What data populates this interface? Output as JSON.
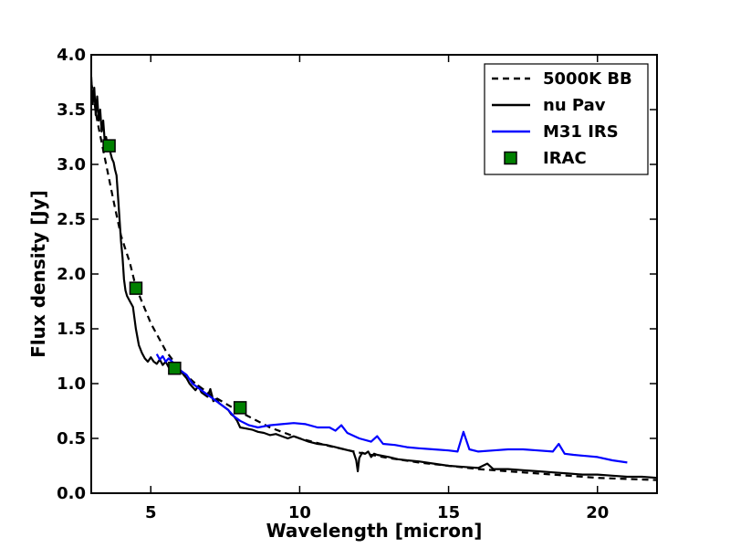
{
  "chart_data": {
    "type": "line",
    "title": "",
    "xlabel": "Wavelength [micron]",
    "ylabel": "Flux density [Jy]",
    "xlim": [
      3,
      22
    ],
    "ylim": [
      0,
      4
    ],
    "xticks": [
      5,
      10,
      15,
      20
    ],
    "xtick_labels": [
      "5",
      "10",
      "15",
      "20"
    ],
    "yticks": [
      0,
      0.5,
      1,
      1.5,
      2,
      2.5,
      3,
      3.5,
      4
    ],
    "ytick_labels": [
      "0.0",
      "0.5",
      "1.0",
      "1.5",
      "2.0",
      "2.5",
      "3.0",
      "3.5",
      "4.0"
    ],
    "grid": false,
    "legend_position": "top-right",
    "series": [
      {
        "name": "5000K BB",
        "style": "dashed",
        "color": "#000000",
        "x": [
          3.0,
          3.2,
          3.5,
          3.8,
          4.0,
          4.3,
          4.5,
          5.0,
          5.5,
          6.0,
          6.5,
          7.0,
          7.5,
          8.0,
          9.0,
          10.0,
          11.0,
          12.0,
          13.0,
          14.0,
          15.0,
          16.0,
          17.0,
          18.0,
          19.0,
          20.0,
          21.0,
          22.0
        ],
        "y": [
          3.75,
          3.4,
          3.0,
          2.6,
          2.35,
          2.1,
          1.88,
          1.55,
          1.3,
          1.12,
          1.0,
          0.9,
          0.82,
          0.74,
          0.6,
          0.5,
          0.43,
          0.37,
          0.32,
          0.28,
          0.25,
          0.22,
          0.2,
          0.18,
          0.16,
          0.14,
          0.13,
          0.12
        ]
      },
      {
        "name": "nu Pav",
        "style": "solid",
        "color": "#000000",
        "x": [
          3.0,
          3.05,
          3.1,
          3.15,
          3.2,
          3.25,
          3.3,
          3.35,
          3.4,
          3.45,
          3.5,
          3.55,
          3.6,
          3.65,
          3.7,
          3.75,
          3.8,
          3.85,
          3.9,
          3.95,
          4.0,
          4.05,
          4.1,
          4.15,
          4.2,
          4.3,
          4.4,
          4.5,
          4.6,
          4.7,
          4.8,
          4.9,
          5.0,
          5.1,
          5.2,
          5.3,
          5.4,
          5.5,
          5.6,
          5.7,
          5.8,
          5.9,
          6.0,
          6.1,
          6.2,
          6.3,
          6.4,
          6.5,
          6.6,
          6.7,
          6.8,
          6.9,
          7.0,
          7.1,
          7.2,
          7.3,
          7.4,
          7.5,
          7.6,
          7.7,
          7.8,
          7.9,
          8.0,
          8.2,
          8.4,
          8.6,
          8.8,
          9.0,
          9.2,
          9.4,
          9.6,
          9.8,
          10.0,
          10.3,
          10.6,
          10.9,
          11.2,
          11.5,
          11.8,
          11.9,
          11.95,
          12.0,
          12.1,
          12.2,
          12.3,
          12.4,
          12.5,
          12.6,
          12.8,
          13.0,
          13.3,
          13.6,
          14.0,
          14.5,
          15.0,
          15.5,
          16.0,
          16.3,
          16.5,
          17.0,
          17.5,
          18.0,
          18.5,
          19.0,
          19.5,
          20.0,
          20.5,
          21.0,
          21.5,
          22.0
        ],
        "y": [
          3.8,
          3.55,
          3.7,
          3.45,
          3.62,
          3.4,
          3.5,
          3.3,
          3.4,
          3.22,
          3.25,
          3.15,
          3.18,
          3.1,
          3.05,
          3.02,
          2.95,
          2.9,
          2.7,
          2.5,
          2.3,
          2.15,
          1.95,
          1.85,
          1.8,
          1.75,
          1.7,
          1.5,
          1.35,
          1.28,
          1.23,
          1.2,
          1.24,
          1.2,
          1.18,
          1.22,
          1.17,
          1.2,
          1.15,
          1.14,
          1.1,
          1.13,
          1.12,
          1.08,
          1.05,
          1.0,
          0.97,
          0.94,
          0.98,
          0.92,
          0.9,
          0.88,
          0.95,
          0.84,
          0.86,
          0.82,
          0.8,
          0.78,
          0.76,
          0.72,
          0.7,
          0.66,
          0.6,
          0.59,
          0.58,
          0.56,
          0.55,
          0.53,
          0.54,
          0.52,
          0.5,
          0.52,
          0.5,
          0.47,
          0.45,
          0.44,
          0.42,
          0.4,
          0.38,
          0.3,
          0.2,
          0.32,
          0.37,
          0.36,
          0.38,
          0.33,
          0.36,
          0.35,
          0.34,
          0.33,
          0.31,
          0.3,
          0.29,
          0.27,
          0.25,
          0.24,
          0.23,
          0.27,
          0.22,
          0.22,
          0.21,
          0.2,
          0.19,
          0.18,
          0.17,
          0.17,
          0.16,
          0.15,
          0.15,
          0.14
        ]
      },
      {
        "name": "M31 IRS",
        "style": "solid",
        "color": "#0000ff",
        "x": [
          5.2,
          5.3,
          5.4,
          5.5,
          5.6,
          5.8,
          6.0,
          6.2,
          6.4,
          6.6,
          6.8,
          7.0,
          7.2,
          7.4,
          7.6,
          7.8,
          8.0,
          8.3,
          8.6,
          9.0,
          9.4,
          9.8,
          10.2,
          10.6,
          11.0,
          11.2,
          11.4,
          11.6,
          12.0,
          12.4,
          12.6,
          12.8,
          13.2,
          13.6,
          14.0,
          14.5,
          15.0,
          15.3,
          15.5,
          15.7,
          16.0,
          16.5,
          17.0,
          17.5,
          18.0,
          18.5,
          18.7,
          18.9,
          19.2,
          19.6,
          20.0,
          20.5,
          21.0
        ],
        "y": [
          1.27,
          1.22,
          1.25,
          1.2,
          1.23,
          1.18,
          1.12,
          1.08,
          1.0,
          0.96,
          0.92,
          0.88,
          0.84,
          0.8,
          0.76,
          0.7,
          0.66,
          0.62,
          0.6,
          0.62,
          0.63,
          0.64,
          0.63,
          0.6,
          0.6,
          0.57,
          0.62,
          0.55,
          0.5,
          0.47,
          0.52,
          0.45,
          0.44,
          0.42,
          0.41,
          0.4,
          0.39,
          0.38,
          0.56,
          0.4,
          0.38,
          0.39,
          0.4,
          0.4,
          0.39,
          0.38,
          0.45,
          0.36,
          0.35,
          0.34,
          0.33,
          0.3,
          0.28
        ]
      },
      {
        "name": "IRAC",
        "style": "marker",
        "color": "#008000",
        "x": [
          3.6,
          4.5,
          5.8,
          8.0
        ],
        "y": [
          3.17,
          1.87,
          1.14,
          0.78
        ]
      }
    ]
  }
}
